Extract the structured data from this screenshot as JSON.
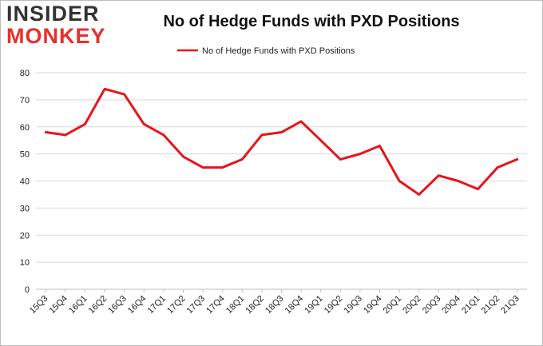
{
  "logo": {
    "line1": "INSIDER",
    "line2": "MONKEY"
  },
  "chart_data": {
    "type": "line",
    "title": "No of Hedge Funds with PXD Positions",
    "xlabel": "",
    "ylabel": "",
    "ylim": [
      0,
      80
    ],
    "yticks": [
      0,
      10,
      20,
      30,
      40,
      50,
      60,
      70,
      80
    ],
    "grid": true,
    "legend": "top-center",
    "color": "#e8141b",
    "categories": [
      "15Q3",
      "15Q4",
      "16Q1",
      "16Q2",
      "16Q3",
      "16Q4",
      "17Q1",
      "17Q2",
      "17Q3",
      "17Q4",
      "18Q1",
      "18Q2",
      "18Q3",
      "18Q4",
      "19Q1",
      "19Q2",
      "19Q3",
      "19Q4",
      "20Q1",
      "20Q2",
      "20Q3",
      "20Q4",
      "21Q1",
      "21Q2",
      "21Q3"
    ],
    "series": [
      {
        "name": "No of Hedge Funds with PXD Positions",
        "values": [
          58,
          57,
          61,
          74,
          72,
          61,
          57,
          49,
          45,
          45,
          48,
          57,
          58,
          62,
          55,
          48,
          50,
          53,
          40,
          35,
          42,
          40,
          37,
          45,
          48
        ]
      }
    ]
  }
}
